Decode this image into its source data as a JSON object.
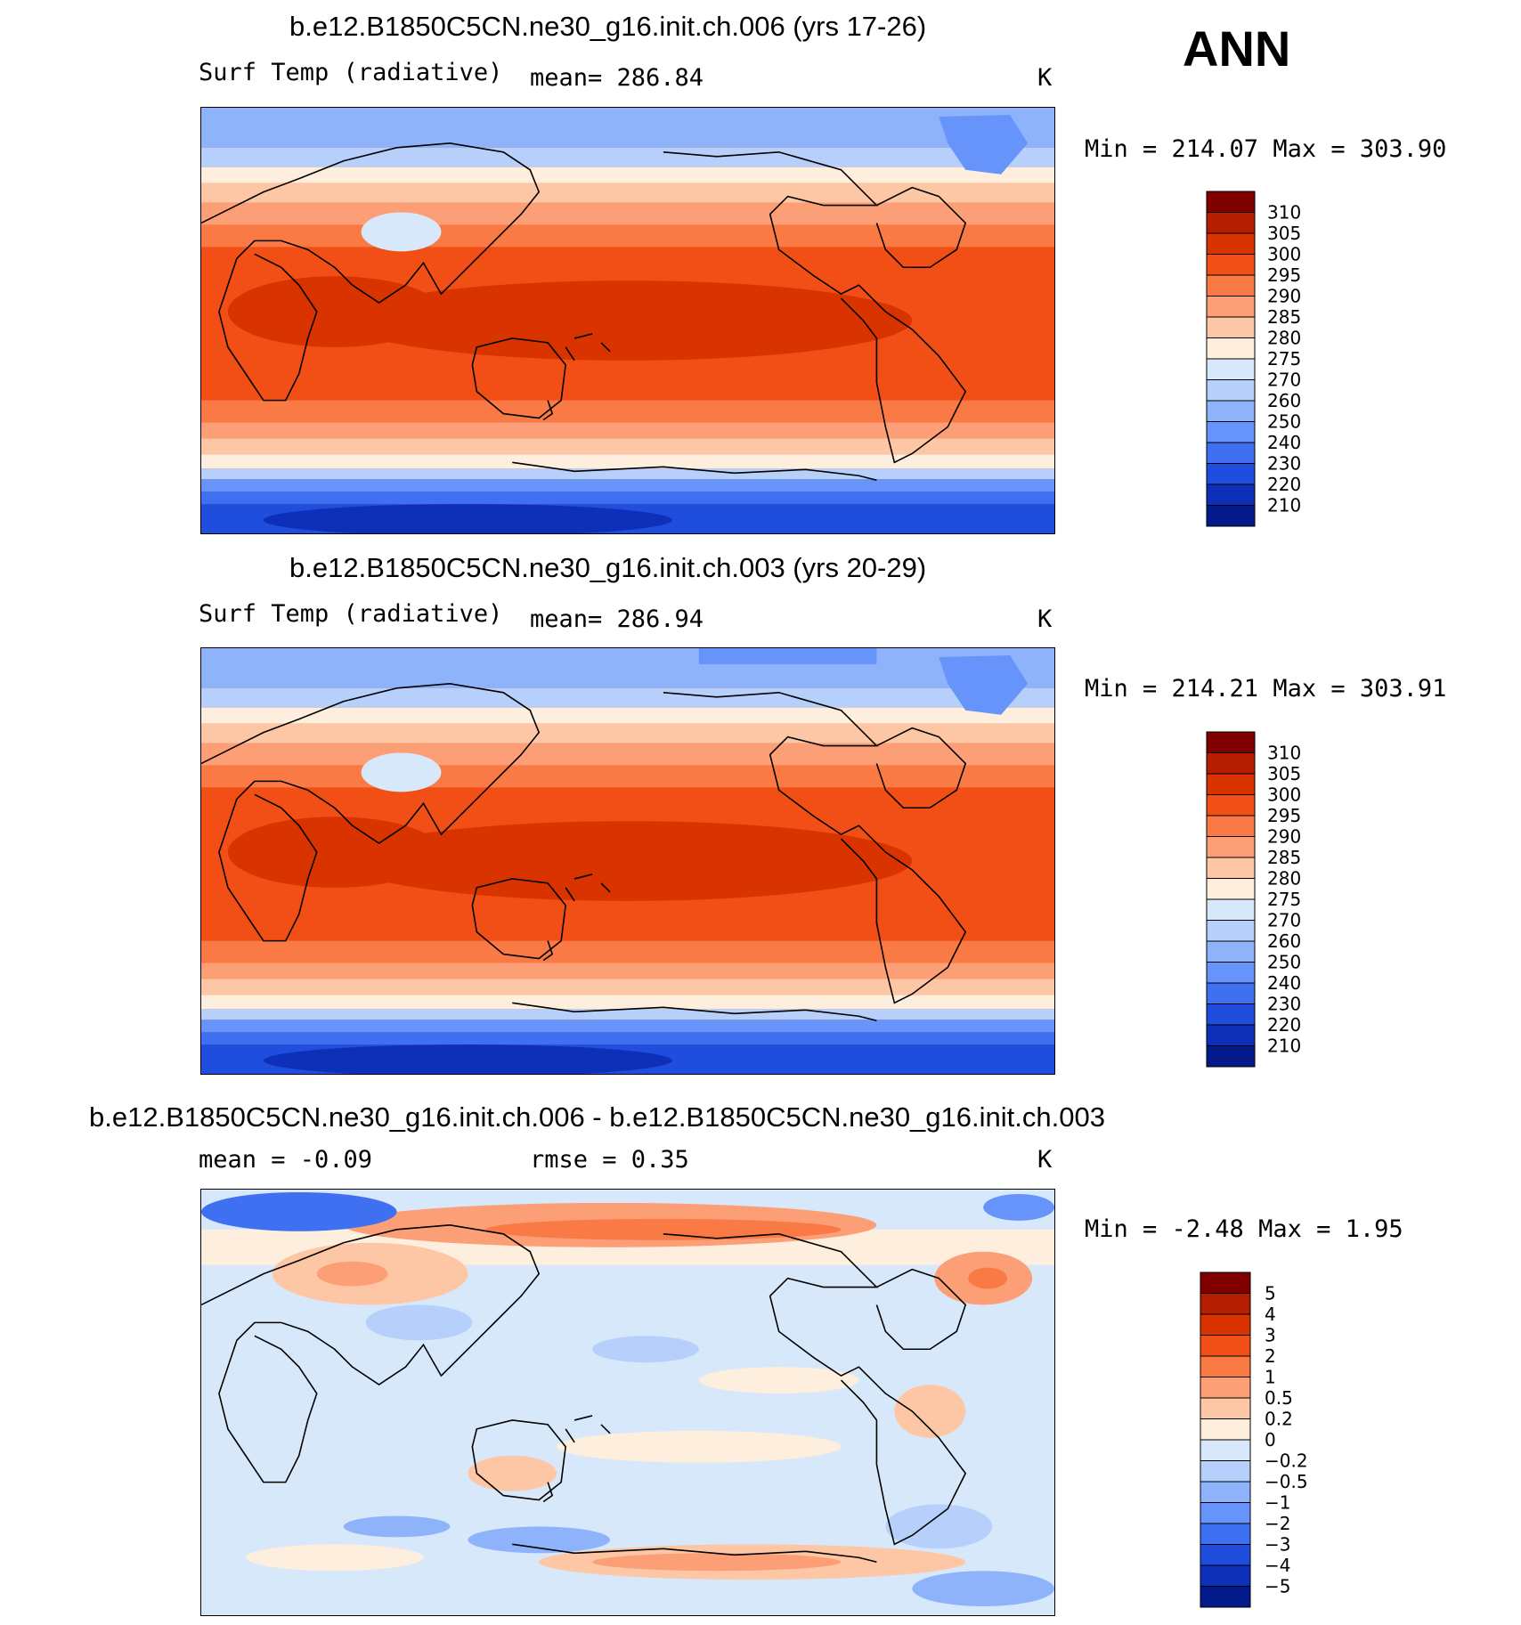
{
  "season": "ANN",
  "panels": [
    {
      "title": "b.e12.B1850C5CN.ne30_g16.init.ch.006 (yrs 17-26)",
      "left_label": "Surf Temp (radiative)",
      "stat_label": "mean= 286.84",
      "units": "K",
      "minmax": "Min = 214.07 Max = 303.90",
      "colorbar_levels": [
        "310",
        "305",
        "300",
        "295",
        "290",
        "285",
        "280",
        "275",
        "270",
        "260",
        "250",
        "240",
        "230",
        "220",
        "210"
      ]
    },
    {
      "title": "b.e12.B1850C5CN.ne30_g16.init.ch.003 (yrs 20-29)",
      "left_label": "Surf Temp (radiative)",
      "stat_label": "mean= 286.94",
      "units": "K",
      "minmax": "Min = 214.21 Max = 303.91",
      "colorbar_levels": [
        "310",
        "305",
        "300",
        "295",
        "290",
        "285",
        "280",
        "275",
        "270",
        "260",
        "250",
        "240",
        "230",
        "220",
        "210"
      ]
    },
    {
      "title": "b.e12.B1850C5CN.ne30_g16.init.ch.006 - b.e12.B1850C5CN.ne30_g16.init.ch.003",
      "left_label": "mean = -0.09",
      "stat_label": "rmse = 0.35",
      "units": "K",
      "minmax": "Min = -2.48 Max = 1.95",
      "colorbar_levels": [
        "5",
        "4",
        "3",
        "2",
        "1",
        "0.5",
        "0.2",
        "0",
        "-0.2",
        "-0.5",
        "-1",
        "-2",
        "-3",
        "-4",
        "-5"
      ]
    }
  ],
  "colors": {
    "abs_palette": [
      "#800000",
      "#b51e00",
      "#d93400",
      "#f24f16",
      "#fa7a45",
      "#fc9f77",
      "#fdc7a6",
      "#feeedd",
      "#d8e8fb",
      "#b6d0fb",
      "#8fb3fb",
      "#6694fb",
      "#3f70f2",
      "#1f4ddd",
      "#0e30b8",
      "#051a8a"
    ],
    "diff_palette": [
      "#800000",
      "#b51e00",
      "#d93400",
      "#f24f16",
      "#fa7a45",
      "#fc9f77",
      "#fdc7a6",
      "#feeedd",
      "#d8e8fb",
      "#b6d0fb",
      "#8fb3fb",
      "#6694fb",
      "#3f70f2",
      "#1f4ddd",
      "#0e30b8",
      "#051a8a"
    ]
  }
}
